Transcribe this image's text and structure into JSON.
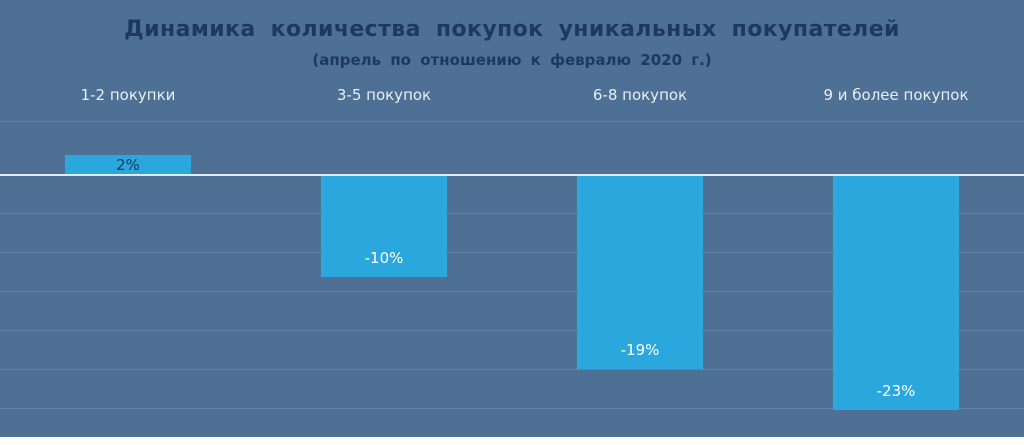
{
  "chart_data": {
    "type": "bar",
    "title": "Динамика количества покупок уникальных покупателей",
    "subtitle": "(апрель по отношению к февралю 2020 г.)",
    "categories": [
      "1-2 покупки",
      "3-5 покупок",
      "6-8 покупок",
      "9 и более покупок"
    ],
    "values": [
      2,
      -10,
      -19,
      -23
    ],
    "value_labels": [
      "2%",
      "-10%",
      "-19%",
      "-23%"
    ],
    "unit": "%",
    "ylim": [
      -25,
      5
    ],
    "grid": true,
    "zero_line": true,
    "legend": "none",
    "colors": {
      "background": "#4e7095",
      "bar": "#2aa7dd",
      "grid": "#5f82a6",
      "zero_line": "#e3eaf1",
      "title_text": "#1c3a5e",
      "category_text": "#e8eef4",
      "positive_label_text": "#1c3a5e",
      "negative_label_text": "#ffffff"
    }
  }
}
